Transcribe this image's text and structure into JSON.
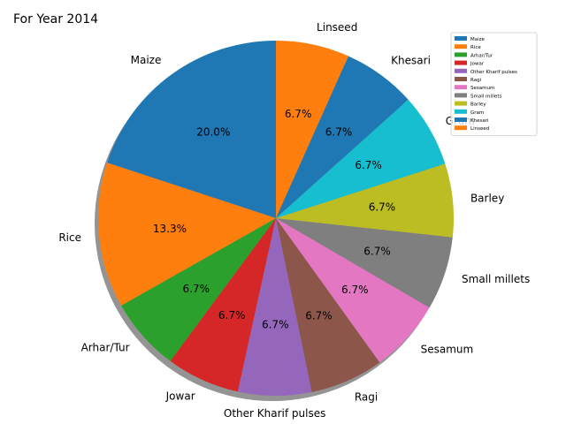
{
  "chart_data": {
    "type": "pie",
    "title": "For Year 2014",
    "categories": [
      "Maize",
      "Rice",
      "Arhar/Tur",
      "Jowar",
      "Other Kharif pulses",
      "Ragi",
      "Sesamum",
      "Small millets",
      "Barley",
      "Gram",
      "Khesari",
      "Linseed"
    ],
    "values": [
      20.0,
      13.3,
      6.7,
      6.7,
      6.7,
      6.7,
      6.7,
      6.7,
      6.7,
      6.7,
      6.7,
      6.7
    ],
    "value_labels": [
      "20.0%",
      "13.3%",
      "6.7%",
      "6.7%",
      "6.7%",
      "6.7%",
      "6.7%",
      "6.7%",
      "6.7%",
      "6.7%",
      "6.7%",
      "6.7%"
    ],
    "colors": [
      "#1f77b4",
      "#ff7f0e",
      "#2ca02c",
      "#d62728",
      "#9467bd",
      "#8c564b",
      "#e377c2",
      "#7f7f7f",
      "#bcbd22",
      "#17becf",
      "#1f77b4",
      "#ff7f0e"
    ],
    "start_angle_deg": 90,
    "direction": "counterclockwise",
    "shadow": true,
    "legend_position": "top-right"
  }
}
